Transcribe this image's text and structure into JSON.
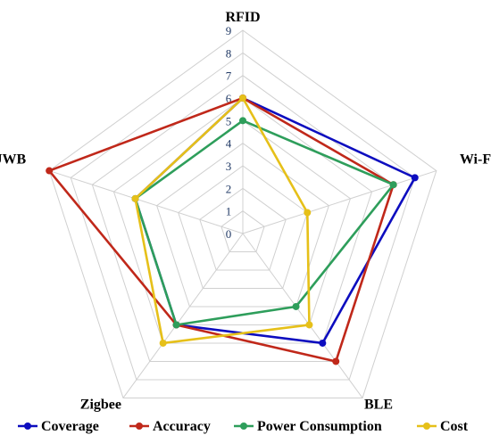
{
  "chart_data": {
    "type": "radar",
    "axes": [
      "RFID",
      "Wi-Fi",
      "BLE",
      "Zigbee",
      "UWB"
    ],
    "range": [
      0,
      9
    ],
    "ticks": [
      0,
      1,
      2,
      3,
      4,
      5,
      6,
      7,
      8,
      9
    ],
    "grid": true,
    "legend_position": "bottom",
    "series": [
      {
        "name": "Coverage",
        "values": [
          6,
          8,
          6,
          5,
          5
        ],
        "color": "#0d0dbf"
      },
      {
        "name": "Accuracy",
        "values": [
          6,
          7,
          7,
          5,
          9
        ],
        "color": "#c0281a"
      },
      {
        "name": "Power Consumption",
        "values": [
          5,
          7,
          4,
          5,
          5
        ],
        "color": "#2e9e5b"
      },
      {
        "name": "Cost",
        "values": [
          6,
          3,
          5,
          6,
          5
        ],
        "color": "#e6c019"
      }
    ]
  }
}
